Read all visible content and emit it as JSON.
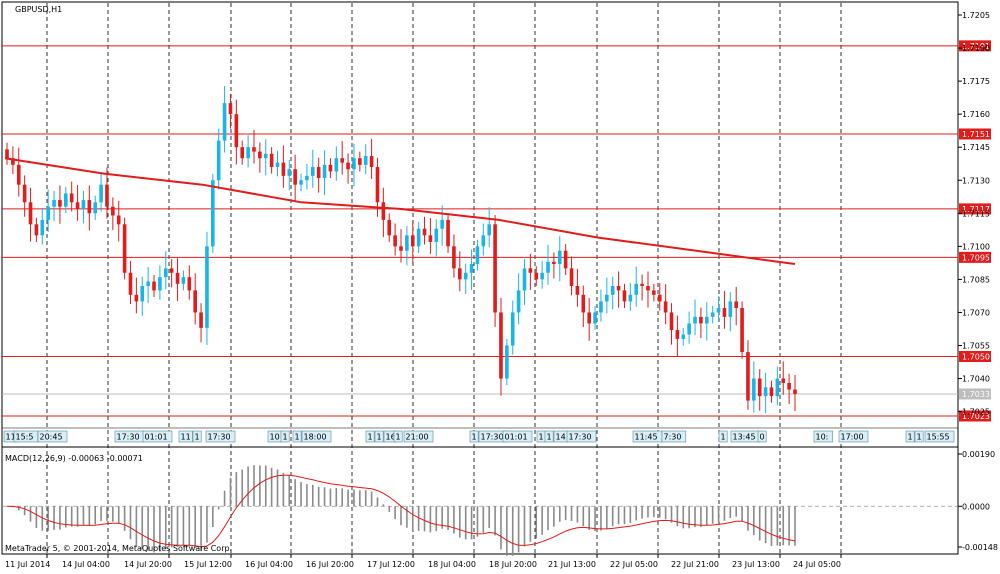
{
  "symbol_label": "GBPUSD,H1",
  "macd_label": "MACD(12,26,9) -0.00063 -0.00071",
  "copyright": "MetaTrader 5, © 2001-2014, MetaQuotes Software Corp.",
  "colors": {
    "bull": "#1ab5e8",
    "bear": "#e21b1b",
    "ma": "#e21b1b",
    "level": "#e21b1b",
    "grid": "#000000",
    "current": "#bdbdbd",
    "histogram": "#8a8a8a",
    "signal": "#e21b1b"
  },
  "price_axis": {
    "ticks": [
      "1.7205",
      "1.7190",
      "1.7175",
      "1.7160",
      "1.7145",
      "1.7130",
      "1.7115",
      "1.7100",
      "1.7085",
      "1.7070",
      "1.7055",
      "1.7040",
      "1.7025"
    ]
  },
  "levels": [
    {
      "label": "1.7191",
      "value": 1.7191
    },
    {
      "label": "1.7151",
      "value": 1.7151
    },
    {
      "label": "1.7117",
      "value": 1.7117
    },
    {
      "label": "1.7095",
      "value": 1.7095
    },
    {
      "label": "1.7050",
      "value": 1.705
    },
    {
      "label": "1.7023",
      "value": 1.7023
    }
  ],
  "current_price": {
    "label": "1.7033",
    "value": 1.7033
  },
  "macd_axis": {
    "ticks": [
      "0.00190",
      "0.0000",
      "-0.00148"
    ]
  },
  "time_axis": {
    "labels": [
      "11 Jul 2014",
      "14 Jul 04:00",
      "14 Jul 20:00",
      "15 Jul 12:00",
      "16 Jul 04:00",
      "16 Jul 20:00",
      "17 Jul 12:00",
      "18 Jul 04:00",
      "18 Jul 20:00",
      "21 Jul 13:00",
      "22 Jul 05:00",
      "22 Jul 21:00",
      "23 Jul 13:00",
      "24 Jul 05:00"
    ]
  },
  "event_tags": [
    "11",
    "15:5",
    "20:45",
    "17:30",
    "01:01",
    "11",
    "1",
    "17:30",
    "10",
    "1",
    "1",
    "18:00",
    "1",
    "1",
    "16",
    "1",
    "21:00",
    "1",
    "17:30",
    "01:01",
    "1",
    "1",
    "14",
    "17:30",
    "11:45",
    "7:30",
    "1",
    "13:45",
    "0",
    "10:",
    "17:00",
    "1",
    "1",
    "15:55"
  ],
  "chart_data": {
    "type": "candlestick",
    "symbol": "GBPUSD",
    "timeframe": "H1",
    "price_range": [
      1.7018,
      1.721
    ],
    "close_series": [
      1.714,
      1.7137,
      1.7128,
      1.712,
      1.711,
      1.7105,
      1.7112,
      1.7118,
      1.7121,
      1.7118,
      1.7124,
      1.712,
      1.7117,
      1.7121,
      1.7115,
      1.712,
      1.7128,
      1.7118,
      1.7114,
      1.711,
      1.7088,
      1.7078,
      1.7075,
      1.7082,
      1.7084,
      1.708,
      1.7086,
      1.709,
      1.7088,
      1.7083,
      1.7086,
      1.708,
      1.707,
      1.7063,
      1.71,
      1.713,
      1.7148,
      1.7165,
      1.716,
      1.7145,
      1.714,
      1.7145,
      1.7143,
      1.714,
      1.7142,
      1.7136,
      1.7138,
      1.7132,
      1.7135,
      1.7128,
      1.713,
      1.7132,
      1.7136,
      1.7131,
      1.7137,
      1.7134,
      1.714,
      1.7138,
      1.7135,
      1.714,
      1.7137,
      1.7141,
      1.7136,
      1.712,
      1.7112,
      1.7105,
      1.71,
      1.7098,
      1.7105,
      1.71,
      1.7108,
      1.7105,
      1.7102,
      1.7108,
      1.7112,
      1.71,
      1.709,
      1.7085,
      1.7088,
      1.7092,
      1.71,
      1.7105,
      1.711,
      1.707,
      1.704,
      1.7055,
      1.707,
      1.708,
      1.709,
      1.7088,
      1.7085,
      1.7088,
      1.7093,
      1.7092,
      1.7098,
      1.709,
      1.7082,
      1.7078,
      1.707,
      1.7065,
      1.707,
      1.7075,
      1.7078,
      1.7082,
      1.708,
      1.7075,
      1.7078,
      1.7083,
      1.7082,
      1.708,
      1.7078,
      1.7075,
      1.707,
      1.7062,
      1.7058,
      1.706,
      1.7065,
      1.7068,
      1.7065,
      1.7068,
      1.707,
      1.7072,
      1.7068,
      1.7075,
      1.7072,
      1.7052,
      1.703,
      1.704,
      1.7032,
      1.7036,
      1.7032,
      1.704,
      1.7038,
      1.7035,
      1.7033
    ],
    "moving_average": [
      1.714,
      1.7133,
      1.7128,
      1.712,
      1.7117,
      1.7112,
      1.7104,
      1.7098,
      1.7092
    ],
    "horizontal_levels": [
      1.7191,
      1.7151,
      1.7117,
      1.7095,
      1.705,
      1.7023
    ],
    "current_price": 1.7033,
    "macd": {
      "params": "12,26,9",
      "main": -0.00063,
      "signal": -0.00071,
      "range": [
        -0.00148,
        0.0019
      ]
    },
    "x_tick_labels": [
      "11 Jul 2014",
      "14 Jul 04:00",
      "14 Jul 20:00",
      "15 Jul 12:00",
      "16 Jul 04:00",
      "16 Jul 20:00",
      "17 Jul 12:00",
      "18 Jul 04:00",
      "18 Jul 20:00",
      "21 Jul 13:00",
      "22 Jul 05:00",
      "22 Jul 21:00",
      "23 Jul 13:00",
      "24 Jul 05:00"
    ]
  }
}
